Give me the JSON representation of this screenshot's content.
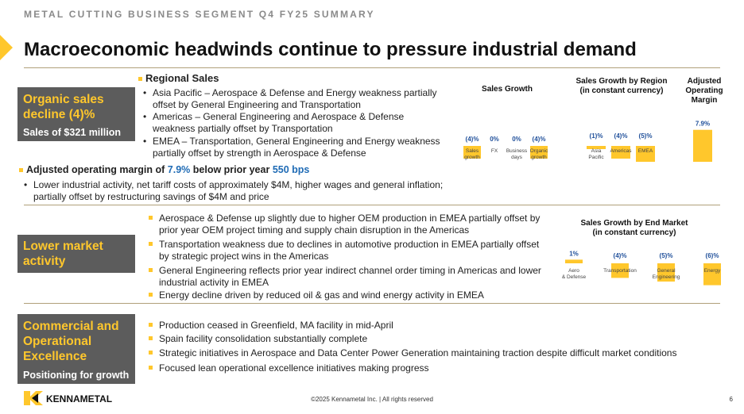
{
  "header": {
    "eyebrow": "METAL CUTTING BUSINESS SEGMENT Q4 FY25 SUMMARY",
    "title": "Macroeconomic headwinds continue to pressure industrial demand"
  },
  "sections": {
    "organic": {
      "heading": "Organic sales decline (4)%",
      "sub": "Sales of $321 million",
      "regional_title": "Regional Sales",
      "regional_bullets": [
        "Asia Pacific – Aerospace & Defense and Energy weakness partially offset by General Engineering and Transportation",
        "Americas – General Engineering and Aerospace & Defense weakness partially offset by Transportation",
        "EMEA – Transportation, General Engineering and Energy weakness partially offset by strength in Aerospace & Defense"
      ],
      "margin_prefix": "Adjusted operating margin of ",
      "margin_value": "7.9%",
      "margin_mid": " below prior year ",
      "margin_bps": "550 bps",
      "margin_bullet": "Lower industrial activity, net tariff costs of approximately $4M, higher wages and general inflation; partially offset by restructuring savings of $4M and price"
    },
    "market": {
      "heading": "Lower market activity",
      "bullets": [
        "Aerospace & Defense up slightly due to higher OEM production in EMEA partially offset by prior year OEM project timing and supply chain disruption in the Americas",
        "Transportation weakness due to declines in automotive production in EMEA partially offset by strategic project wins in the Americas",
        "General Engineering reflects prior year indirect channel order timing in Americas and lower industrial activity in EMEA",
        "Energy decline driven by reduced oil & gas and wind energy activity in EMEA"
      ]
    },
    "commercial": {
      "heading": "Commercial and Operational Excellence",
      "sub": "Positioning for growth",
      "bullets": [
        "Production ceased in Greenfield, MA facility in mid-April",
        "Spain facility consolidation substantially complete",
        "Strategic initiatives in Aerospace and Data Center Power Generation maintaining traction despite difficult market conditions",
        "Focused lean operational excellence initiatives making progress"
      ]
    }
  },
  "chart_data": [
    {
      "type": "bar",
      "title": "Sales Growth",
      "categories": [
        "Sales growth",
        "FX",
        "Business days",
        "Organic growth"
      ],
      "values": [
        -4,
        0,
        0,
        -4
      ],
      "labels": [
        "(4)%",
        "0%",
        "0%",
        "(4)%"
      ]
    },
    {
      "type": "bar",
      "title": "Sales Growth by Region (in constant currency)",
      "categories": [
        "Asia Pacific",
        "Americas",
        "EMEA"
      ],
      "values": [
        -1,
        -4,
        -5
      ],
      "labels": [
        "(1)%",
        "(4)%",
        "(5)%"
      ]
    },
    {
      "type": "bar",
      "title": "Adjusted Operating Margin",
      "categories": [
        ""
      ],
      "values": [
        7.9
      ],
      "labels": [
        "7.9%"
      ]
    },
    {
      "type": "bar",
      "title": "Sales Growth by End Market (in constant currency)",
      "categories": [
        "Aero & Defense",
        "Transportation",
        "General Engineering",
        "Energy"
      ],
      "values": [
        1,
        -4,
        -5,
        -6
      ],
      "labels": [
        "1%",
        "(4)%",
        "(5)%",
        "(6)%"
      ]
    }
  ],
  "footer": {
    "copyright": "©2025 Kennametal Inc.  |  All rights reserved",
    "page": "6",
    "logo_text": "KENNAMETAL"
  },
  "colors": {
    "accent": "#FFC72C",
    "box": "#5c5c5c",
    "value_label": "#1f4f9a",
    "highlight": "#1f6bb5"
  }
}
